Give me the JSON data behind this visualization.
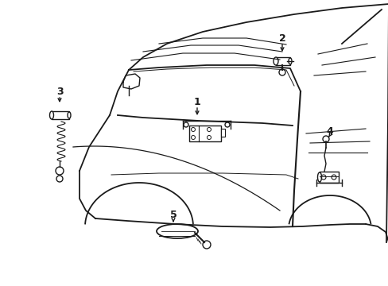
{
  "bg_color": "#ffffff",
  "line_color": "#1a1a1a",
  "lw": 1.0,
  "fig_width": 4.89,
  "fig_height": 3.6,
  "dpi": 100
}
